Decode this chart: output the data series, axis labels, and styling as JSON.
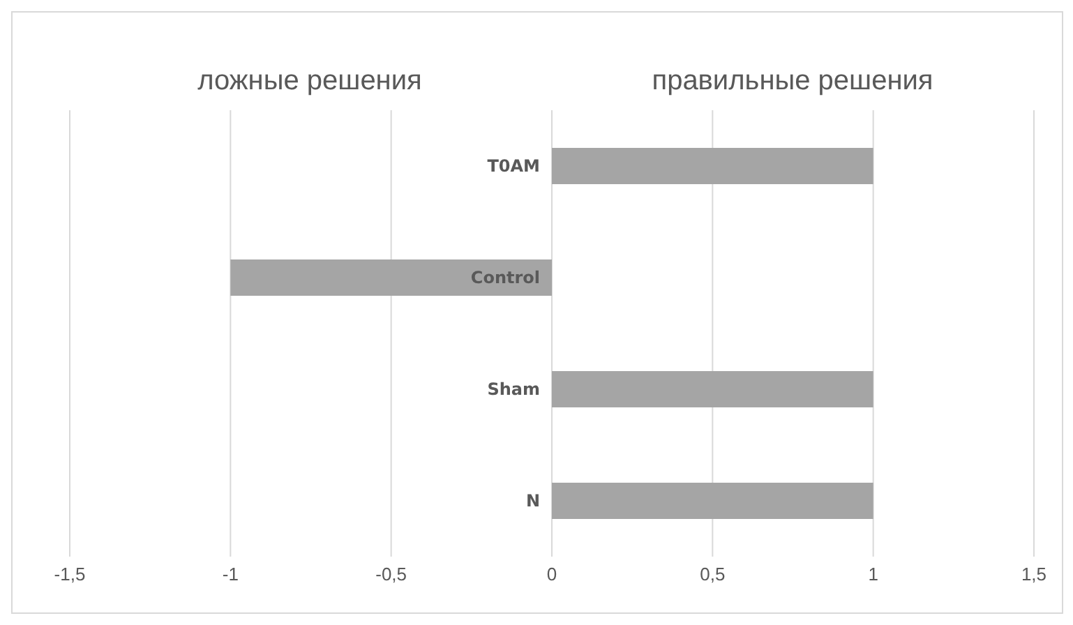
{
  "chart_data": {
    "type": "bar",
    "orientation": "horizontal",
    "categories": [
      "T0AM",
      "Control",
      "Sham",
      "N"
    ],
    "values": [
      1,
      -1,
      1,
      1
    ],
    "color": "#a5a5a5",
    "xlim": [
      -1.5,
      1.5
    ],
    "xticks": [
      {
        "value": -1.5,
        "label": "-1,5"
      },
      -1,
      {
        "value": -0.5,
        "label": "-0,5"
      },
      0,
      {
        "value": 0.5,
        "label": "0,5"
      },
      1,
      {
        "value": 1.5,
        "label": "1,5"
      }
    ],
    "grid": "x",
    "annotations": [
      "ложные решения",
      "правильные решения"
    ]
  }
}
